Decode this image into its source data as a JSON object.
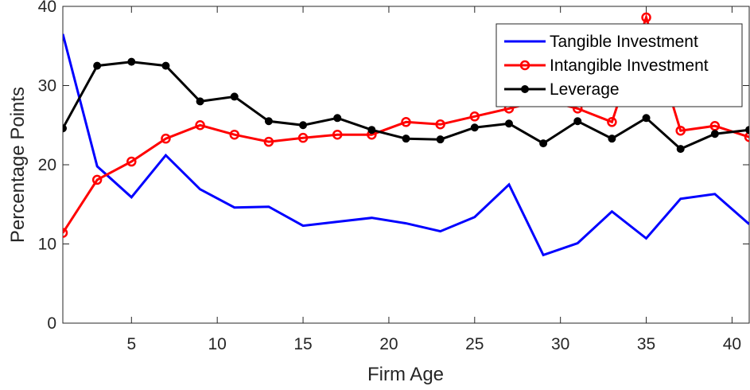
{
  "chart_data": {
    "type": "line",
    "title": "",
    "xlabel": "Firm Age",
    "ylabel": "Percentage Points",
    "xlim": [
      1,
      41
    ],
    "ylim": [
      0,
      40
    ],
    "xticks": [
      5,
      10,
      15,
      20,
      25,
      30,
      35,
      40
    ],
    "yticks": [
      0,
      10,
      20,
      30,
      40
    ],
    "grid": false,
    "legend_position": "top-right",
    "series": [
      {
        "name": "Tangible Investment",
        "color": "#0000ff",
        "marker": "none",
        "x": [
          1,
          3,
          5,
          7,
          9,
          11,
          13,
          15,
          17,
          19,
          21,
          23,
          25,
          27,
          29,
          31,
          33,
          35,
          37,
          39,
          41
        ],
        "y": [
          36.5,
          19.8,
          15.9,
          21.2,
          16.9,
          14.6,
          14.7,
          12.3,
          12.8,
          13.3,
          12.6,
          11.6,
          13.4,
          17.5,
          8.6,
          10.1,
          14.1,
          10.7,
          15.7,
          16.3,
          12.5
        ]
      },
      {
        "name": "Intangible Investment",
        "color": "#ff0000",
        "marker": "circle-open",
        "x": [
          1,
          3,
          5,
          7,
          9,
          11,
          13,
          15,
          17,
          19,
          21,
          23,
          25,
          27,
          29,
          31,
          33,
          35,
          37,
          39,
          41
        ],
        "y": [
          11.4,
          18.1,
          20.4,
          23.3,
          25.0,
          23.8,
          22.9,
          23.4,
          23.8,
          23.8,
          25.4,
          25.1,
          26.1,
          27.1,
          28.2,
          27.1,
          25.4,
          38.6,
          24.3,
          24.9,
          23.5
        ]
      },
      {
        "name": "Leverage",
        "color": "#000000",
        "marker": "circle-filled",
        "x": [
          1,
          3,
          5,
          7,
          9,
          11,
          13,
          15,
          17,
          19,
          21,
          23,
          25,
          27,
          29,
          31,
          33,
          35,
          37,
          39,
          41
        ],
        "y": [
          24.6,
          32.5,
          33.0,
          32.5,
          28.0,
          28.6,
          25.5,
          25.0,
          25.9,
          24.4,
          23.3,
          23.2,
          24.7,
          25.2,
          22.7,
          25.5,
          23.3,
          25.9,
          22.0,
          23.9,
          24.4
        ]
      }
    ]
  }
}
